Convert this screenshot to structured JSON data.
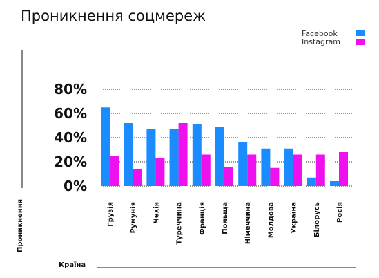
{
  "chart_data": {
    "type": "bar",
    "title": "Проникнення соцмереж",
    "xlabel": "Країна",
    "ylabel": "Проникнення",
    "categories": [
      "Грузія",
      "Румунія",
      "Чехія",
      "Туреччина",
      "Франція",
      "Польща",
      "Німеччина",
      "Молдова",
      "Україна",
      "Білорусь",
      "Росія"
    ],
    "series": [
      {
        "name": "Facebook",
        "color": "#1a8cff",
        "values": [
          65,
          52,
          47,
          47,
          51,
          49,
          36,
          31,
          31,
          7,
          4
        ]
      },
      {
        "name": "Instagram",
        "color": "#ee11ee",
        "values": [
          25,
          14,
          23,
          52,
          26,
          16,
          26,
          15,
          26,
          26,
          28
        ]
      }
    ],
    "ylim": [
      0,
      80
    ],
    "yticks": [
      0,
      20,
      40,
      60,
      80
    ],
    "ytick_labels": [
      "0%",
      "20%",
      "40%",
      "60%",
      "80%"
    ],
    "grid": "dotted horizontal",
    "legend_position": "top-right"
  }
}
